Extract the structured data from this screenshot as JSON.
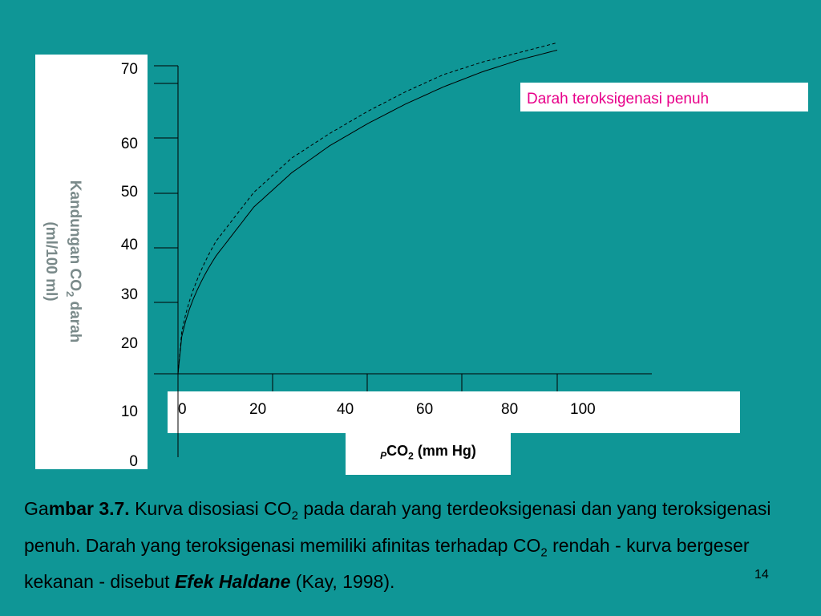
{
  "chart_data": {
    "type": "line",
    "ylabel_line1": "Kandungan CO",
    "ylabel_sub": "2",
    "ylabel_line1_tail": "  darah",
    "ylabel_line2": "(ml/100 ml)",
    "xlabel_prefix": "P",
    "xlabel_main": "CO",
    "xlabel_sub": "2",
    "xlabel_tail": " (mm Hg)",
    "xticks": [
      "0",
      "20",
      "40",
      "60",
      "80",
      "100"
    ],
    "yticks": [
      "70",
      "60",
      "50",
      "40",
      "30",
      "20",
      "10",
      "0"
    ],
    "xlim": [
      0,
      100
    ],
    "ylim": [
      0,
      70
    ],
    "grid": false,
    "legend_label": "Darah teroksigenasi penuh",
    "series": [
      {
        "name": "Darah teroksigenasi penuh",
        "style": "solid",
        "x": [
          0,
          10,
          20,
          30,
          40,
          50,
          60,
          70,
          80,
          90,
          100
        ],
        "y": [
          0,
          24,
          34,
          41,
          46.5,
          51,
          55,
          58.5,
          61.5,
          64,
          66
        ]
      },
      {
        "style": "dashed",
        "x": [
          0,
          10,
          20,
          30,
          40,
          50,
          60,
          70,
          80,
          90,
          100
        ],
        "y": [
          0,
          27,
          37,
          44,
          49,
          53.5,
          57.5,
          61,
          63.5,
          65.5,
          67.5
        ]
      }
    ]
  },
  "caption": {
    "part1": "Ga",
    "part2": "mbar 3.7.",
    "part3": " Kurva disosiasi CO",
    "sub1": "2",
    "part4": " pada darah yang terdeoksigenasi dan yang teroksigenasi penuh. Darah yang teroksigenasi memiliki afinitas terhadap CO",
    "sub2": "2",
    "part5": " rendah - kurva bergeser kekanan - disebut ",
    "emph": "Efek Haldane",
    "part6": " (Kay, 1998)."
  },
  "page_number": "14",
  "colors": {
    "background": "#0f9696",
    "legend_text": "#e8008a",
    "axis_label": "#7a8a8a"
  }
}
